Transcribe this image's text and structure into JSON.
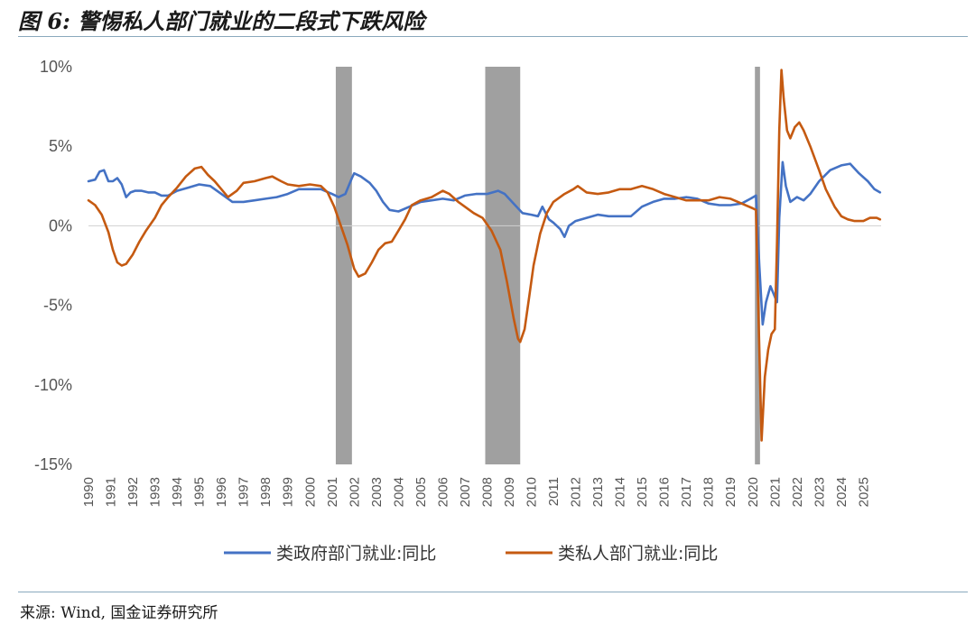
{
  "figure": {
    "title": "图 6: 警惕私人部门就业的二段式下跌风险",
    "source": "来源: Wind, 国金证券研究所"
  },
  "chart_data": {
    "type": "line",
    "title": "",
    "xlabel": "",
    "ylabel": "",
    "x_range": [
      1990.0,
      2025.8
    ],
    "ylim": [
      -15,
      10
    ],
    "y_ticks": [
      10,
      5,
      0,
      -5,
      -10,
      -15
    ],
    "y_tick_labels": [
      "10%",
      "5%",
      "0%",
      "-5%",
      "-10%",
      "-15%"
    ],
    "x_tick_labels": [
      "1990",
      "1991",
      "1992",
      "1993",
      "1994",
      "1995",
      "1996",
      "1997",
      "1998",
      "1999",
      "2000",
      "2001",
      "2002",
      "2003",
      "2004",
      "2005",
      "2006",
      "2007",
      "2008",
      "2009",
      "2010",
      "2011",
      "2012",
      "2013",
      "2014",
      "2015",
      "2016",
      "2017",
      "2018",
      "2019",
      "2020",
      "2021",
      "2022",
      "2023",
      "2024",
      "2025"
    ],
    "grid": false,
    "legend_position": "bottom",
    "recessions": [
      [
        2001.17,
        2001.9
      ],
      [
        2007.92,
        2009.5
      ],
      [
        2020.1,
        2020.33
      ]
    ],
    "recession_color": "#a0a0a0",
    "series": [
      {
        "name": "类政府部门就业:同比",
        "color": "#4472c4",
        "points": [
          [
            1990.0,
            2.8
          ],
          [
            1990.3,
            2.9
          ],
          [
            1990.5,
            3.4
          ],
          [
            1990.7,
            3.5
          ],
          [
            1990.9,
            2.8
          ],
          [
            1991.1,
            2.8
          ],
          [
            1991.3,
            3.0
          ],
          [
            1991.5,
            2.6
          ],
          [
            1991.7,
            1.8
          ],
          [
            1991.9,
            2.1
          ],
          [
            1992.1,
            2.2
          ],
          [
            1992.4,
            2.2
          ],
          [
            1992.7,
            2.1
          ],
          [
            1993.0,
            2.1
          ],
          [
            1993.3,
            1.9
          ],
          [
            1993.6,
            1.9
          ],
          [
            1994.0,
            2.2
          ],
          [
            1994.5,
            2.4
          ],
          [
            1995.0,
            2.6
          ],
          [
            1995.5,
            2.5
          ],
          [
            1996.0,
            2.0
          ],
          [
            1996.5,
            1.5
          ],
          [
            1997.0,
            1.5
          ],
          [
            1997.5,
            1.6
          ],
          [
            1998.0,
            1.7
          ],
          [
            1998.5,
            1.8
          ],
          [
            1999.0,
            2.0
          ],
          [
            1999.5,
            2.3
          ],
          [
            2000.0,
            2.3
          ],
          [
            2000.5,
            2.3
          ],
          [
            2001.0,
            2.0
          ],
          [
            2001.3,
            1.8
          ],
          [
            2001.6,
            2.0
          ],
          [
            2001.9,
            3.0
          ],
          [
            2002.0,
            3.3
          ],
          [
            2002.3,
            3.1
          ],
          [
            2002.7,
            2.7
          ],
          [
            2003.0,
            2.2
          ],
          [
            2003.3,
            1.5
          ],
          [
            2003.6,
            1.0
          ],
          [
            2004.0,
            0.9
          ],
          [
            2004.5,
            1.2
          ],
          [
            2005.0,
            1.5
          ],
          [
            2005.5,
            1.6
          ],
          [
            2006.0,
            1.7
          ],
          [
            2006.5,
            1.6
          ],
          [
            2007.0,
            1.9
          ],
          [
            2007.5,
            2.0
          ],
          [
            2008.0,
            2.0
          ],
          [
            2008.5,
            2.2
          ],
          [
            2008.8,
            2.0
          ],
          [
            2009.2,
            1.4
          ],
          [
            2009.6,
            0.8
          ],
          [
            2010.0,
            0.7
          ],
          [
            2010.3,
            0.6
          ],
          [
            2010.5,
            1.2
          ],
          [
            2010.8,
            0.4
          ],
          [
            2011.0,
            0.2
          ],
          [
            2011.3,
            -0.2
          ],
          [
            2011.5,
            -0.7
          ],
          [
            2011.7,
            0.0
          ],
          [
            2012.0,
            0.3
          ],
          [
            2012.5,
            0.5
          ],
          [
            2013.0,
            0.7
          ],
          [
            2013.5,
            0.6
          ],
          [
            2014.0,
            0.6
          ],
          [
            2014.5,
            0.6
          ],
          [
            2015.0,
            1.2
          ],
          [
            2015.5,
            1.5
          ],
          [
            2016.0,
            1.7
          ],
          [
            2016.5,
            1.7
          ],
          [
            2017.0,
            1.8
          ],
          [
            2017.5,
            1.7
          ],
          [
            2018.0,
            1.4
          ],
          [
            2018.5,
            1.3
          ],
          [
            2019.0,
            1.3
          ],
          [
            2019.5,
            1.4
          ],
          [
            2019.9,
            1.7
          ],
          [
            2020.15,
            1.9
          ],
          [
            2020.3,
            -2.5
          ],
          [
            2020.45,
            -6.2
          ],
          [
            2020.6,
            -4.8
          ],
          [
            2020.8,
            -3.8
          ],
          [
            2020.95,
            -4.3
          ],
          [
            2021.1,
            -4.8
          ],
          [
            2021.2,
            0.5
          ],
          [
            2021.35,
            4.0
          ],
          [
            2021.5,
            2.5
          ],
          [
            2021.7,
            1.5
          ],
          [
            2022.0,
            1.8
          ],
          [
            2022.3,
            1.6
          ],
          [
            2022.6,
            2.0
          ],
          [
            2023.0,
            2.8
          ],
          [
            2023.5,
            3.5
          ],
          [
            2024.0,
            3.8
          ],
          [
            2024.4,
            3.9
          ],
          [
            2024.8,
            3.3
          ],
          [
            2025.2,
            2.8
          ],
          [
            2025.5,
            2.3
          ],
          [
            2025.75,
            2.1
          ]
        ]
      },
      {
        "name": "类私人部门就业:同比",
        "color": "#c55a11",
        "points": [
          [
            1990.0,
            1.6
          ],
          [
            1990.3,
            1.3
          ],
          [
            1990.6,
            0.7
          ],
          [
            1990.9,
            -0.4
          ],
          [
            1991.1,
            -1.5
          ],
          [
            1991.3,
            -2.3
          ],
          [
            1991.5,
            -2.5
          ],
          [
            1991.7,
            -2.4
          ],
          [
            1992.0,
            -1.8
          ],
          [
            1992.3,
            -1.0
          ],
          [
            1992.6,
            -0.3
          ],
          [
            1993.0,
            0.5
          ],
          [
            1993.3,
            1.3
          ],
          [
            1993.6,
            1.8
          ],
          [
            1994.0,
            2.4
          ],
          [
            1994.4,
            3.1
          ],
          [
            1994.8,
            3.6
          ],
          [
            1995.1,
            3.7
          ],
          [
            1995.4,
            3.2
          ],
          [
            1995.7,
            2.8
          ],
          [
            1996.0,
            2.3
          ],
          [
            1996.3,
            1.8
          ],
          [
            1996.7,
            2.2
          ],
          [
            1997.0,
            2.7
          ],
          [
            1997.5,
            2.8
          ],
          [
            1998.0,
            3.0
          ],
          [
            1998.3,
            3.1
          ],
          [
            1998.7,
            2.8
          ],
          [
            1999.0,
            2.6
          ],
          [
            1999.5,
            2.5
          ],
          [
            2000.0,
            2.6
          ],
          [
            2000.5,
            2.5
          ],
          [
            2000.8,
            2.1
          ],
          [
            2001.1,
            1.2
          ],
          [
            2001.4,
            0.0
          ],
          [
            2001.7,
            -1.2
          ],
          [
            2002.0,
            -2.7
          ],
          [
            2002.2,
            -3.2
          ],
          [
            2002.5,
            -3.0
          ],
          [
            2002.8,
            -2.3
          ],
          [
            2003.1,
            -1.5
          ],
          [
            2003.4,
            -1.1
          ],
          [
            2003.7,
            -1.0
          ],
          [
            2004.0,
            -0.3
          ],
          [
            2004.3,
            0.4
          ],
          [
            2004.6,
            1.3
          ],
          [
            2005.0,
            1.6
          ],
          [
            2005.5,
            1.8
          ],
          [
            2006.0,
            2.2
          ],
          [
            2006.3,
            2.0
          ],
          [
            2006.7,
            1.5
          ],
          [
            2007.0,
            1.2
          ],
          [
            2007.4,
            0.8
          ],
          [
            2007.8,
            0.5
          ],
          [
            2008.2,
            -0.3
          ],
          [
            2008.6,
            -1.5
          ],
          [
            2008.9,
            -3.5
          ],
          [
            2009.2,
            -5.8
          ],
          [
            2009.4,
            -7.1
          ],
          [
            2009.5,
            -7.3
          ],
          [
            2009.7,
            -6.5
          ],
          [
            2009.9,
            -4.5
          ],
          [
            2010.1,
            -2.5
          ],
          [
            2010.4,
            -0.5
          ],
          [
            2010.7,
            0.8
          ],
          [
            2011.0,
            1.5
          ],
          [
            2011.5,
            2.0
          ],
          [
            2011.9,
            2.3
          ],
          [
            2012.1,
            2.5
          ],
          [
            2012.5,
            2.1
          ],
          [
            2013.0,
            2.0
          ],
          [
            2013.5,
            2.1
          ],
          [
            2014.0,
            2.3
          ],
          [
            2014.5,
            2.3
          ],
          [
            2015.0,
            2.5
          ],
          [
            2015.5,
            2.3
          ],
          [
            2016.0,
            2.0
          ],
          [
            2016.5,
            1.8
          ],
          [
            2017.0,
            1.6
          ],
          [
            2017.5,
            1.6
          ],
          [
            2018.0,
            1.6
          ],
          [
            2018.5,
            1.8
          ],
          [
            2019.0,
            1.7
          ],
          [
            2019.5,
            1.4
          ],
          [
            2020.0,
            1.1
          ],
          [
            2020.15,
            1.0
          ],
          [
            2020.25,
            -5.0
          ],
          [
            2020.4,
            -13.5
          ],
          [
            2020.55,
            -9.5
          ],
          [
            2020.7,
            -7.8
          ],
          [
            2020.85,
            -6.8
          ],
          [
            2021.0,
            -6.5
          ],
          [
            2021.1,
            -1.0
          ],
          [
            2021.2,
            6.0
          ],
          [
            2021.3,
            9.8
          ],
          [
            2021.4,
            8.0
          ],
          [
            2021.55,
            6.0
          ],
          [
            2021.7,
            5.5
          ],
          [
            2021.9,
            6.2
          ],
          [
            2022.1,
            6.5
          ],
          [
            2022.3,
            6.0
          ],
          [
            2022.6,
            5.0
          ],
          [
            2023.0,
            3.5
          ],
          [
            2023.3,
            2.3
          ],
          [
            2023.7,
            1.2
          ],
          [
            2024.0,
            0.6
          ],
          [
            2024.3,
            0.4
          ],
          [
            2024.6,
            0.3
          ],
          [
            2025.0,
            0.3
          ],
          [
            2025.3,
            0.5
          ],
          [
            2025.6,
            0.5
          ],
          [
            2025.75,
            0.4
          ]
        ]
      }
    ]
  }
}
